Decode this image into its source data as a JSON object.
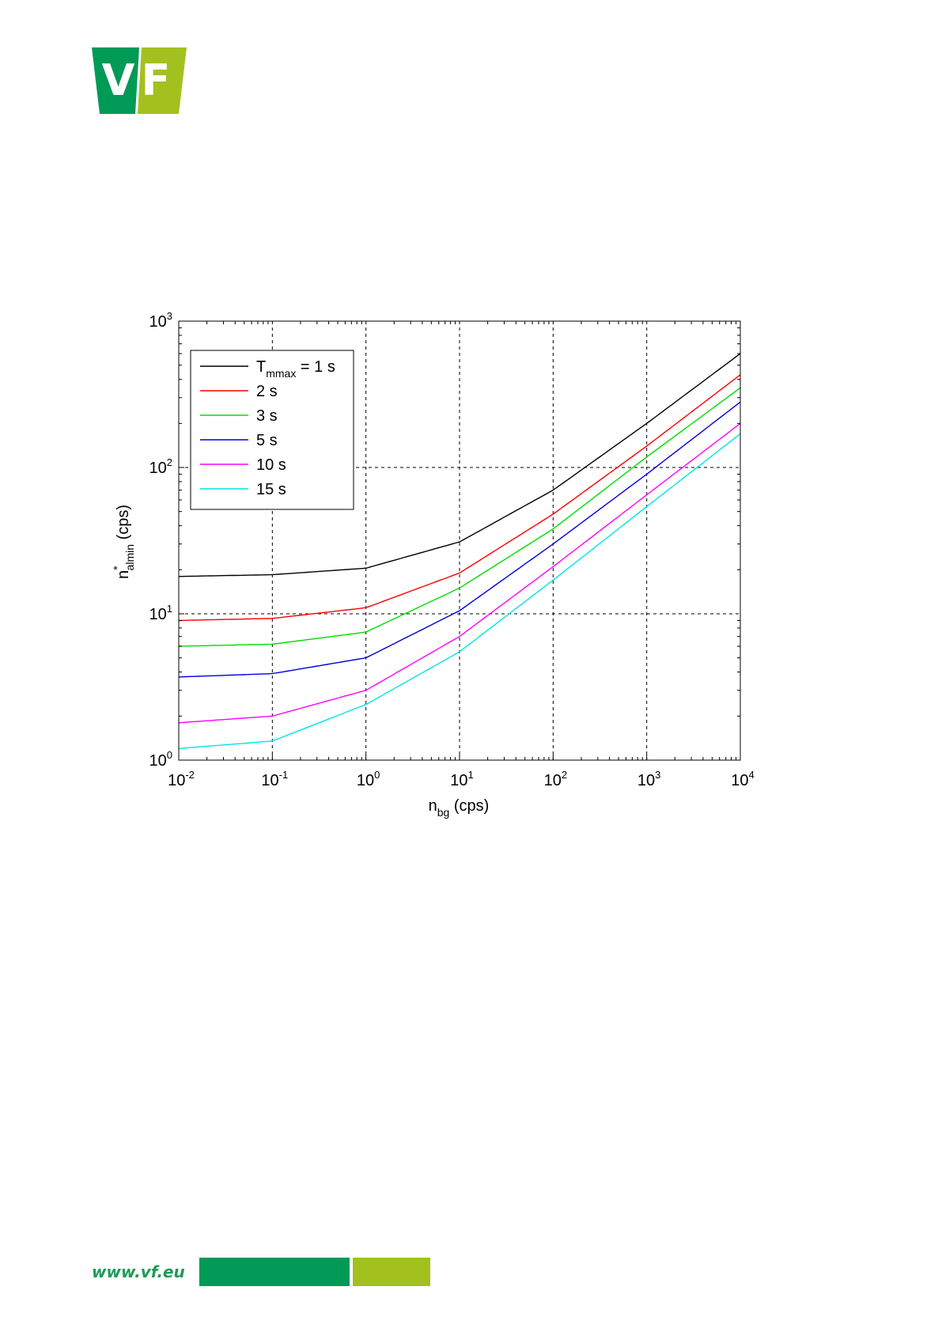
{
  "brand": {
    "logo_text": "VF",
    "website": "www.vf.eu",
    "colors": {
      "green": "#009a57",
      "lime": "#a3c11e"
    }
  },
  "chart_data": {
    "type": "line",
    "x_scale": "log",
    "y_scale": "log",
    "xlim": [
      0.01,
      10000
    ],
    "ylim": [
      1,
      1000
    ],
    "xlabel": {
      "base": "n",
      "sub": "bg",
      "rest": " (cps)"
    },
    "ylabel": {
      "base": "n",
      "sup": "*",
      "sub": "almin",
      "rest": " (cps)"
    },
    "x_ticks": [
      {
        "value": 0.01,
        "base": "10",
        "exp": "-2"
      },
      {
        "value": 0.1,
        "base": "10",
        "exp": "-1"
      },
      {
        "value": 1,
        "base": "10",
        "exp": "0"
      },
      {
        "value": 10,
        "base": "10",
        "exp": "1"
      },
      {
        "value": 100,
        "base": "10",
        "exp": "2"
      },
      {
        "value": 1000,
        "base": "10",
        "exp": "3"
      },
      {
        "value": 10000,
        "base": "10",
        "exp": "4"
      }
    ],
    "y_ticks": [
      {
        "value": 1,
        "base": "10",
        "exp": "0"
      },
      {
        "value": 10,
        "base": "10",
        "exp": "1"
      },
      {
        "value": 100,
        "base": "10",
        "exp": "2"
      },
      {
        "value": 1000,
        "base": "10",
        "exp": "3"
      }
    ],
    "grid": true,
    "legend_position": "top-left",
    "legend_first": {
      "base": "T",
      "sub": "mmax",
      "rest": " = 1 s"
    },
    "x": [
      0.01,
      0.1,
      1,
      10,
      100,
      1000,
      10000
    ],
    "series": [
      {
        "name": "T_mmax = 1 s",
        "label": "1 s",
        "color": "#000000",
        "values": [
          18,
          18.5,
          20.5,
          31,
          70,
          200,
          600
        ]
      },
      {
        "name": "2 s",
        "label": "2 s",
        "color": "#ff0000",
        "values": [
          9,
          9.3,
          11,
          19,
          48,
          140,
          430
        ]
      },
      {
        "name": "3 s",
        "label": "3 s",
        "color": "#00dd00",
        "values": [
          6,
          6.2,
          7.5,
          15,
          38,
          118,
          350
        ]
      },
      {
        "name": "5 s",
        "label": "5 s",
        "color": "#0000dd",
        "values": [
          3.7,
          3.9,
          5,
          10.5,
          30,
          90,
          280
        ]
      },
      {
        "name": "10 s",
        "label": "10 s",
        "color": "#ff00ff",
        "values": [
          1.8,
          2,
          3,
          7,
          21,
          65,
          200
        ]
      },
      {
        "name": "15 s",
        "label": "15 s",
        "color": "#00e5e5",
        "values": [
          1.2,
          1.35,
          2.4,
          5.5,
          17,
          54,
          170
        ]
      }
    ]
  }
}
